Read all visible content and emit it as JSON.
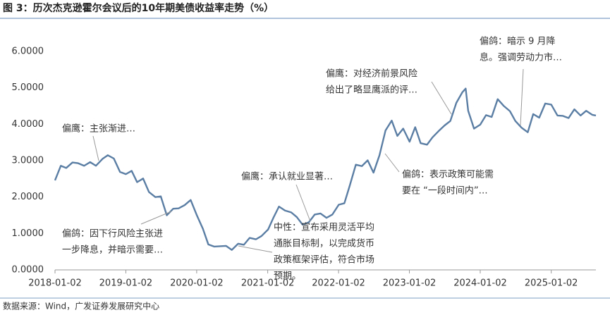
{
  "chart_data": {
    "type": "line",
    "title": "图 3：历次杰克逊霍尔会议后的10年期美债收益率走势（%）",
    "source": "数据来源：Wind，广发证券发展研究中心",
    "x": [
      "2018-01-02",
      "2018-02-01",
      "2018-03-01",
      "2018-04-02",
      "2018-05-01",
      "2018-06-01",
      "2018-07-02",
      "2018-08-01",
      "2018-09-04",
      "2018-10-01",
      "2018-11-01",
      "2018-12-03",
      "2019-01-02",
      "2019-02-01",
      "2019-03-01",
      "2019-04-01",
      "2019-05-01",
      "2019-06-03",
      "2019-07-01",
      "2019-08-01",
      "2019-09-03",
      "2019-10-01",
      "2019-11-01",
      "2019-12-02",
      "2020-01-02",
      "2020-02-03",
      "2020-03-02",
      "2020-04-01",
      "2020-05-01",
      "2020-06-01",
      "2020-07-01",
      "2020-08-03",
      "2020-09-01",
      "2020-10-01",
      "2020-11-02",
      "2020-12-01",
      "2021-01-04",
      "2021-02-01",
      "2021-03-01",
      "2021-04-01",
      "2021-05-03",
      "2021-06-01",
      "2021-07-01",
      "2021-08-02",
      "2021-09-01",
      "2021-10-01",
      "2021-11-01",
      "2021-12-01",
      "2022-01-03",
      "2022-02-01",
      "2022-03-01",
      "2022-04-01",
      "2022-05-02",
      "2022-06-01",
      "2022-07-01",
      "2022-08-01",
      "2022-09-01",
      "2022-10-03",
      "2022-11-01",
      "2022-12-01",
      "2023-01-03",
      "2023-02-01",
      "2023-03-01",
      "2023-04-03",
      "2023-05-01",
      "2023-06-01",
      "2023-07-03",
      "2023-08-01",
      "2023-09-01",
      "2023-10-02",
      "2023-10-19",
      "2023-11-01",
      "2023-12-01",
      "2024-01-02",
      "2024-02-01",
      "2024-03-01",
      "2024-04-01",
      "2024-05-01",
      "2024-06-03",
      "2024-07-01",
      "2024-08-01",
      "2024-09-03",
      "2024-10-01",
      "2024-11-01",
      "2024-12-02",
      "2025-01-02",
      "2025-02-03",
      "2025-03-03",
      "2025-04-01",
      "2025-05-01",
      "2025-06-02",
      "2025-07-01",
      "2025-08-01",
      "2025-08-20"
    ],
    "values": [
      2.46,
      2.86,
      2.8,
      2.95,
      2.93,
      2.86,
      2.96,
      2.86,
      3.05,
      3.15,
      3.06,
      2.69,
      2.63,
      2.72,
      2.41,
      2.51,
      2.14,
      2.0,
      2.02,
      1.5,
      1.68,
      1.69,
      1.78,
      1.92,
      1.51,
      1.13,
      0.7,
      0.64,
      0.65,
      0.66,
      0.55,
      0.72,
      0.69,
      0.88,
      0.84,
      0.93,
      1.11,
      1.44,
      1.74,
      1.63,
      1.58,
      1.45,
      1.24,
      1.31,
      1.52,
      1.55,
      1.43,
      1.52,
      1.79,
      1.83,
      2.32,
      2.89,
      2.85,
      3.01,
      2.67,
      3.15,
      3.83,
      4.1,
      3.68,
      3.88,
      3.52,
      3.92,
      3.48,
      3.44,
      3.64,
      3.81,
      3.97,
      4.09,
      4.59,
      4.88,
      4.98,
      4.37,
      3.88,
      3.99,
      4.25,
      4.2,
      4.69,
      4.51,
      4.36,
      4.09,
      3.91,
      3.78,
      4.28,
      4.18,
      4.57,
      4.54,
      4.24,
      4.23,
      4.17,
      4.41,
      4.24,
      4.37,
      4.26,
      4.24
    ],
    "color": "#5b7ea4",
    "xlim": [
      "2018-01-02",
      "2025-08-20"
    ],
    "xticks": [
      "2018-01-02",
      "2019-01-02",
      "2020-01-02",
      "2021-01-02",
      "2022-01-02",
      "2023-01-02",
      "2024-01-02",
      "2025-01-02"
    ],
    "ylim": [
      0,
      6
    ],
    "yticks": [
      {
        "value": 0,
        "label": "0.0000"
      },
      {
        "value": 1,
        "label": "1.0000"
      },
      {
        "value": 2,
        "label": "2.0000"
      },
      {
        "value": 3,
        "label": "3.0000"
      },
      {
        "value": 4,
        "label": "4.0000"
      },
      {
        "value": 5,
        "label": "5.0000"
      },
      {
        "value": 6,
        "label": "6.0000"
      }
    ],
    "annotations": [
      {
        "lines": [
          "偏鹰：主张渐进…"
        ]
      },
      {
        "lines": [
          "偏鸽：因下行风险主张进",
          "一步降息，并暗示需要…"
        ]
      },
      {
        "lines": [
          "中性：宣布采用灵活平均",
          "通胀目标制，以完成货币",
          "政策框架评估，符合市场",
          "预期。"
        ]
      },
      {
        "lines": [
          "偏鹰：承认就业显著…"
        ]
      },
      {
        "lines": [
          "偏鸽：表示政策可能需",
          "要在 “一段时间内”…"
        ]
      },
      {
        "lines": [
          "偏鹰：对经济前景风险",
          "给出了略显鹰派的评…"
        ]
      },
      {
        "lines": [
          "偏鸽：暗示 9 月降",
          "息。强调劳动力市…"
        ]
      }
    ]
  }
}
